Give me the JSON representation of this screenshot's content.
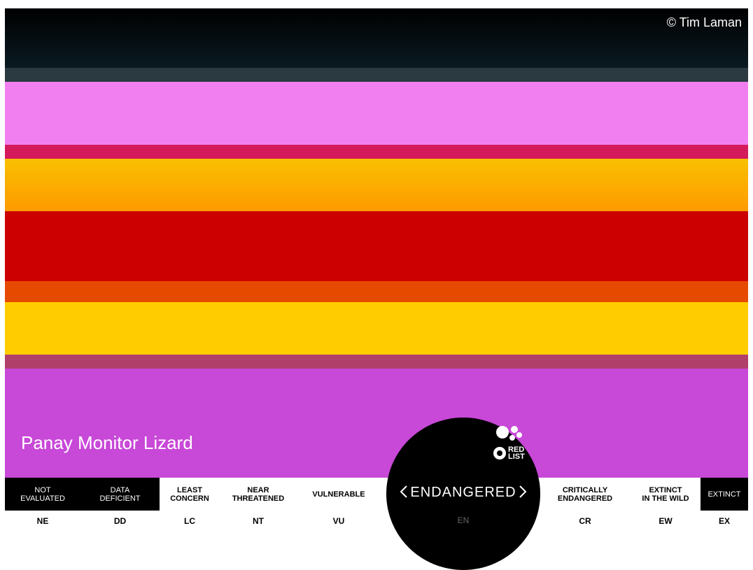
{
  "credit": "© Tim Laman",
  "species_name": "Panay Monitor Lizard",
  "logo": [
    "RED",
    "LIST"
  ],
  "selected_index": 5,
  "categories": [
    {
      "label_lines": [
        "NOT",
        "EVALUATED"
      ],
      "code": "NE",
      "dark": true
    },
    {
      "label_lines": [
        "DATA",
        "DEFICIENT"
      ],
      "code": "DD",
      "dark": true
    },
    {
      "label_lines": [
        "LEAST",
        "CONCERN"
      ],
      "code": "LC",
      "dark": false
    },
    {
      "label_lines": [
        "NEAR",
        "THREATENED"
      ],
      "code": "NT",
      "dark": false
    },
    {
      "label_lines": [
        "VULNERABLE"
      ],
      "code": "VU",
      "dark": false
    },
    {
      "label_lines": [
        "ENDANGERED"
      ],
      "code": "EN",
      "dark": false
    },
    {
      "label_lines": [
        "CRITICALLY",
        "ENDANGERED"
      ],
      "code": "CR",
      "dark": false
    },
    {
      "label_lines": [
        "EXTINCT",
        "IN THE WILD"
      ],
      "code": "EW",
      "dark": false
    },
    {
      "label_lines": [
        "EXTINCT"
      ],
      "code": "EX",
      "dark": true
    }
  ]
}
